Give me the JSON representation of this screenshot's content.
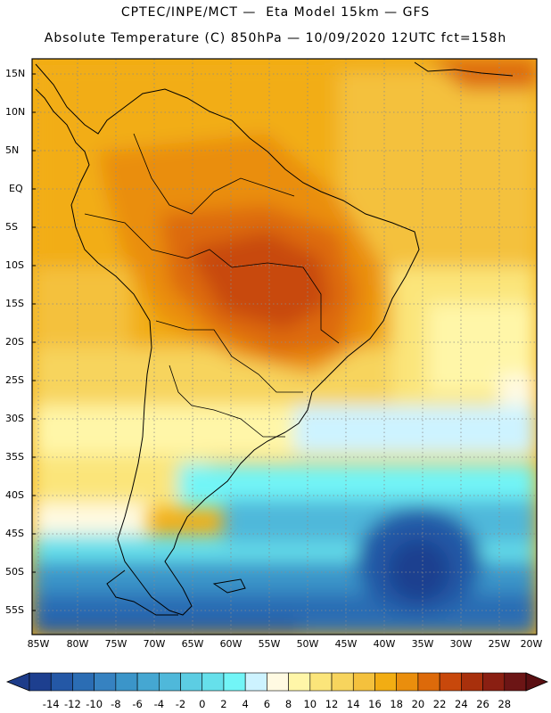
{
  "header": {
    "line1": "CPTEC/INPE/MCT —  Eta Model 15km — GFS",
    "line2": "Absolute Temperature (C) 850hPa — 10/09/2020 12UTC fct=158h"
  },
  "axes": {
    "lat_labels": [
      "15N",
      "10N",
      "5N",
      "EQ",
      "5S",
      "10S",
      "15S",
      "20S",
      "25S",
      "30S",
      "35S",
      "40S",
      "45S",
      "50S",
      "55S"
    ],
    "lon_labels": [
      "85W",
      "80W",
      "75W",
      "70W",
      "65W",
      "60W",
      "55W",
      "50W",
      "45W",
      "40W",
      "35W",
      "30W",
      "25W",
      "20W"
    ],
    "lat_range": [
      17,
      -58
    ],
    "lon_range": [
      -85.5,
      -20
    ]
  },
  "colorbar": {
    "labels": [
      "-14",
      "-12",
      "-10",
      "-8",
      "-6",
      "-4",
      "-2",
      "0",
      "2",
      "4",
      "6",
      "8",
      "10",
      "12",
      "14",
      "16",
      "18",
      "20",
      "22",
      "24",
      "26",
      "28"
    ],
    "colors": [
      "#1d3f8f",
      "#2458a6",
      "#2b6db4",
      "#3682c1",
      "#3b95c9",
      "#45a7d2",
      "#4fb8da",
      "#5ccde3",
      "#66e0eb",
      "#72f5f7",
      "#cdf3ff",
      "#fffae2",
      "#fff6a8",
      "#fbe57a",
      "#f7d45d",
      "#f4c13d",
      "#f2ad13",
      "#ea8e0d",
      "#dd6a0a",
      "#c8480b",
      "#a8300c",
      "#8a1f12",
      "#6c1515"
    ]
  }
}
